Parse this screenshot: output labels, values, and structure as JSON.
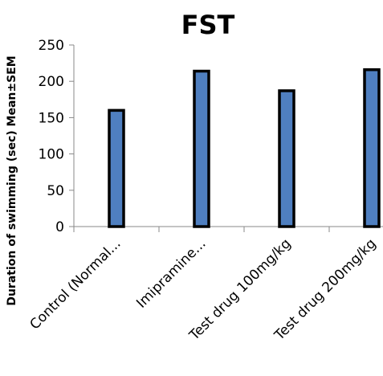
{
  "chart_data": {
    "type": "bar",
    "title": "FST",
    "ylabel": "Duration of swimming (sec) Mean±SEM",
    "xlabel": "",
    "ylim": [
      0,
      250
    ],
    "yticks": [
      0,
      50,
      100,
      150,
      200,
      250
    ],
    "grid": false,
    "categories": [
      "Control (Normal...",
      "Imipramine...",
      "Test drug 100mg/kg",
      "Test drug 200mg/kg"
    ],
    "values": [
      160,
      214,
      187,
      216
    ],
    "bar_color": "#4f7fc0",
    "bar_outline_color": "#000000"
  }
}
